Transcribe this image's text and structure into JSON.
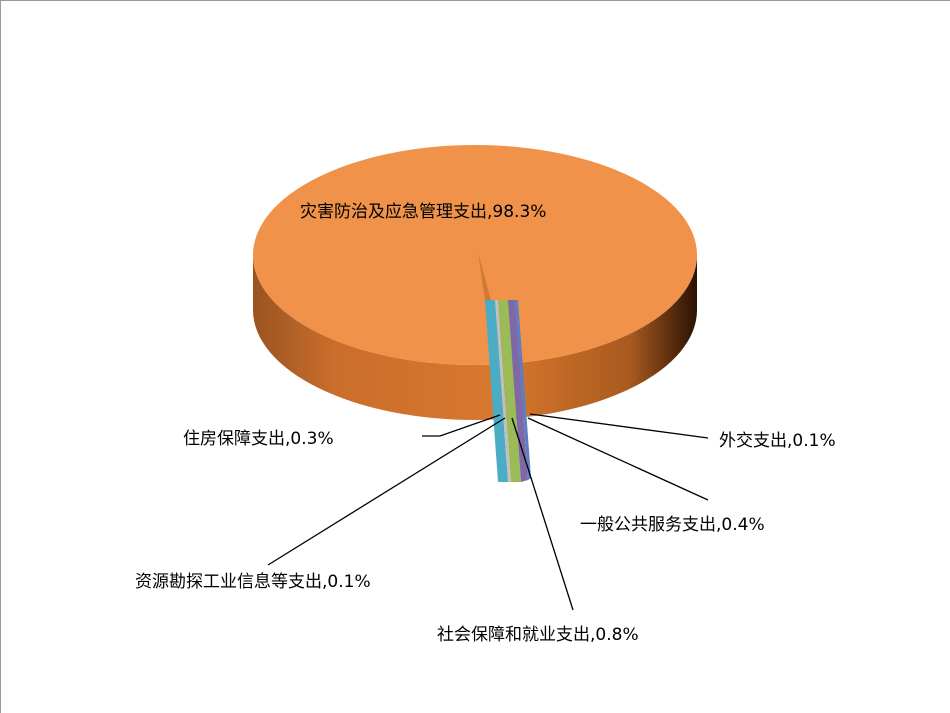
{
  "chart_data": {
    "type": "pie",
    "style": "3d-exploded",
    "categories": [
      "灾害防治及应急管理支出",
      "外交支出",
      "一般公共服务支出",
      "社会保障和就业支出",
      "资源勘探工业信息等支出",
      "住房保障支出"
    ],
    "values": [
      98.3,
      0.1,
      0.4,
      0.8,
      0.1,
      0.3
    ],
    "labels": [
      "灾害防治及应急管理支出,98.3%",
      "外交支出,0.1%",
      "一般公共服务支出,0.4%",
      "社会保障和就业支出,0.8%",
      "资源勘探工业信息等支出,0.1%",
      "住房保障支出,0.3%"
    ],
    "colors": [
      "#F0924A",
      "#5B7FC0",
      "#7E68A8",
      "#9BBB59",
      "#C0C0C0",
      "#4BACC6"
    ]
  }
}
